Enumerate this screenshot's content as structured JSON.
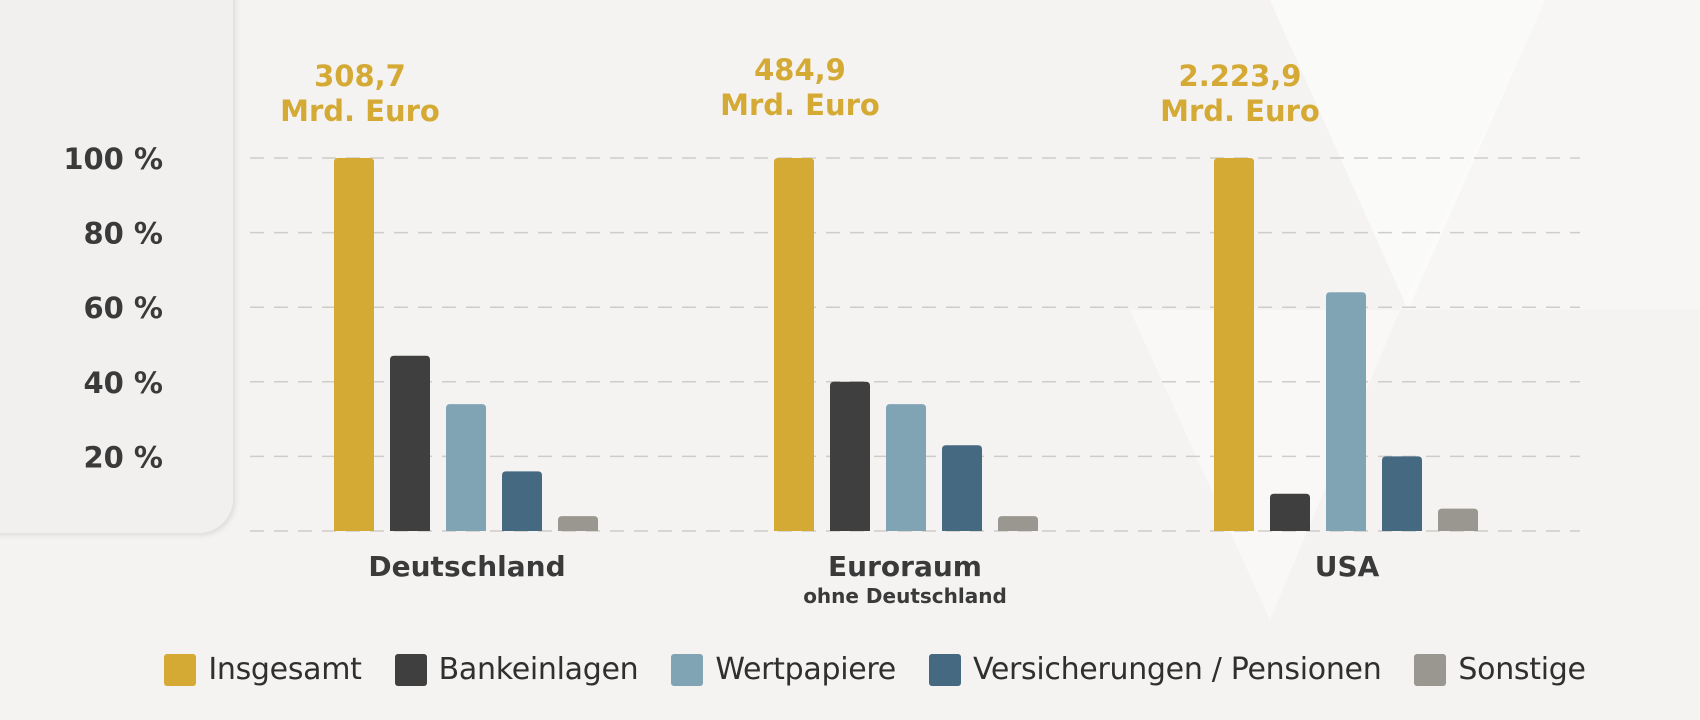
{
  "chart_data": {
    "type": "bar",
    "categories": [
      "Deutschland",
      "Euroraum",
      "USA"
    ],
    "category_sublabels": [
      "",
      "ohne Deutschland",
      ""
    ],
    "totals": [
      "308,7\nMrd. Euro",
      "484,9\nMrd. Euro",
      "2.223,9\nMrd. Euro"
    ],
    "ytick_labels": [
      "100 %",
      "80 %",
      "60 %",
      "40 %",
      "20 %"
    ],
    "ylim": [
      0,
      100
    ],
    "grid": true,
    "legend_position": "bottom",
    "series": [
      {
        "name": "Insgesamt",
        "color": "#d4a934",
        "values": [
          100,
          100,
          100
        ]
      },
      {
        "name": "Bankeinlagen",
        "color": "#3f3f3f",
        "values": [
          47,
          40,
          10
        ]
      },
      {
        "name": "Wertpapiere",
        "color": "#81a4b5",
        "values": [
          34,
          34,
          64
        ]
      },
      {
        "name": "Versicherungen / Pensionen",
        "color": "#456981",
        "values": [
          16,
          23,
          20
        ]
      },
      {
        "name": "Sonstige",
        "color": "#9a9791",
        "values": [
          4,
          4,
          6
        ]
      }
    ]
  }
}
